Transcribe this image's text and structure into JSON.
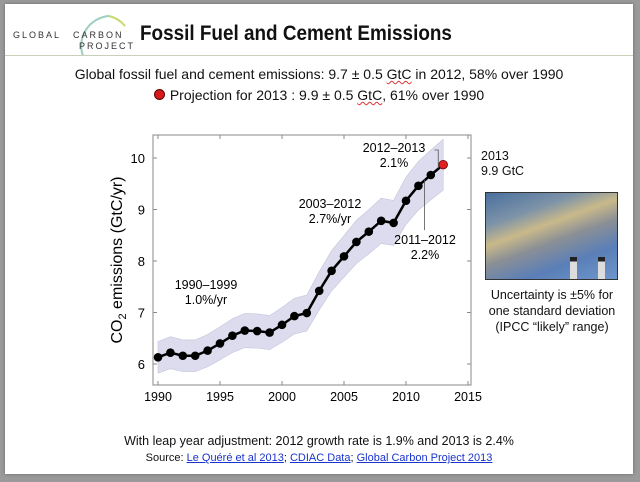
{
  "logo": {
    "line1a": "GLOBAL",
    "line1b": "CARBON",
    "line2": "PROJECT"
  },
  "title": "Fossil Fuel and Cement Emissions",
  "subtitle": {
    "line1_pre": "Global fossil fuel and cement emissions: 9.7 ± 0.5 ",
    "line1_unit": "GtC",
    "line1_post": " in 2012, 58% over 1990",
    "line2_pre": "Projection for 2013 : 9.9 ± 0.5 ",
    "line2_unit": "GtC",
    "line2_post": ", 61% over 1990"
  },
  "side": {
    "year": "2013",
    "value": "9.9 GtC",
    "uncertainty": [
      "Uncertainty is ±5% for",
      "one standard deviation",
      "(IPCC “likely” range)"
    ]
  },
  "footer": {
    "note": "With leap year adjustment: 2012 growth rate is 1.9% and 2013 is 2.4%",
    "source_label": "Source: ",
    "links": [
      "Le Quéré et al 2013",
      "CDIAC Data",
      "Global Carbon Project 2013"
    ]
  },
  "colors": {
    "line": "#000000",
    "band": "#dcdcee",
    "projection": "#e02020"
  },
  "chart_data": {
    "type": "line",
    "ylabel": "CO2 emissions (GtC/yr)",
    "xlim": [
      1990,
      2015
    ],
    "ylim": [
      5.8,
      10.4
    ],
    "xticks": [
      1990,
      1995,
      2000,
      2005,
      2010,
      2015
    ],
    "yticks": [
      6,
      7,
      8,
      9,
      10
    ],
    "uncertainty": "±5%",
    "x": [
      1990,
      1991,
      1992,
      1993,
      1994,
      1995,
      1996,
      1997,
      1998,
      1999,
      2000,
      2001,
      2002,
      2003,
      2004,
      2005,
      2006,
      2007,
      2008,
      2009,
      2010,
      2011,
      2012
    ],
    "y": [
      6.13,
      6.22,
      6.16,
      6.16,
      6.26,
      6.4,
      6.55,
      6.65,
      6.64,
      6.61,
      6.76,
      6.93,
      6.99,
      7.42,
      7.81,
      8.09,
      8.37,
      8.57,
      8.78,
      8.74,
      9.17,
      9.46,
      9.67
    ],
    "projection": {
      "x": 2013,
      "y": 9.87
    },
    "annotations": [
      {
        "text": [
          "1990–1999",
          "1.0%/yr"
        ]
      },
      {
        "text": [
          "2003–2012",
          "2.7%/yr"
        ]
      },
      {
        "text": [
          "2012–2013",
          "2.1%"
        ]
      },
      {
        "text": [
          "2011–2012",
          "2.2%"
        ]
      }
    ]
  }
}
